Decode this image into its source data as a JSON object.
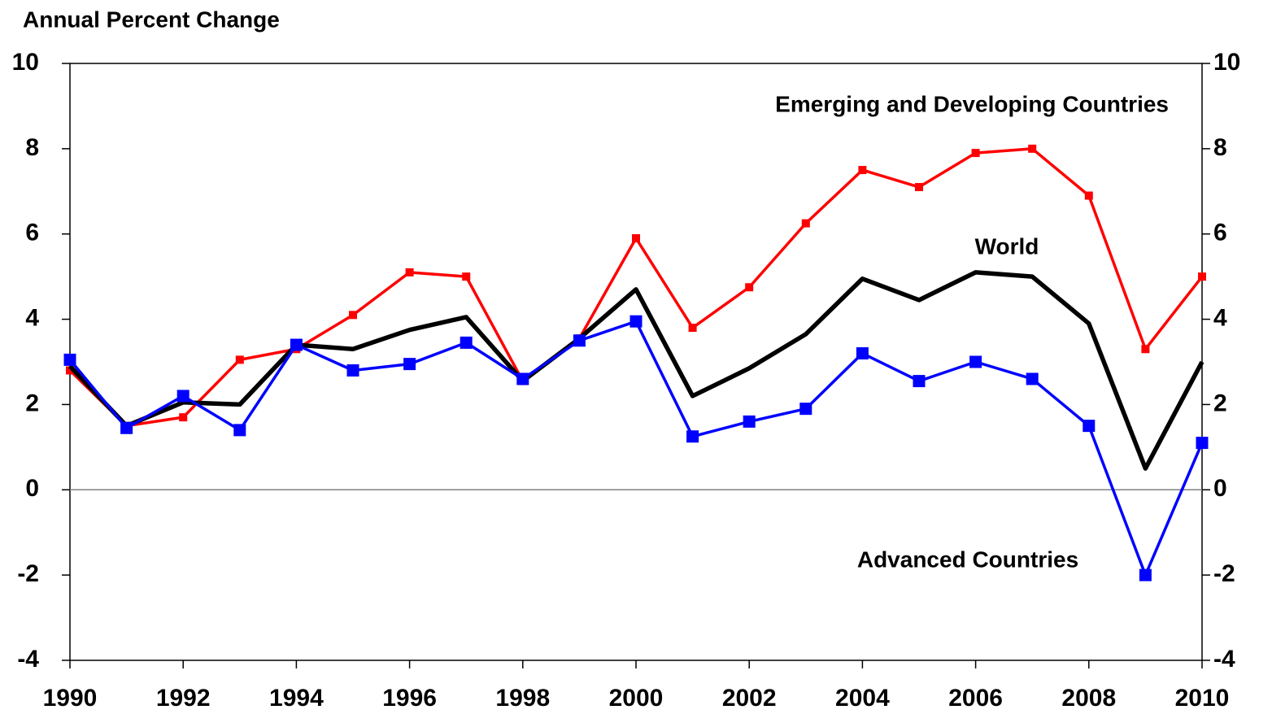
{
  "chart_data": {
    "type": "line",
    "y_label": "Annual Percent Change",
    "x": [
      1990,
      1991,
      1992,
      1993,
      1994,
      1995,
      1996,
      1997,
      1998,
      1999,
      2000,
      2001,
      2002,
      2003,
      2004,
      2005,
      2006,
      2007,
      2008,
      2009,
      2010
    ],
    "xlim": [
      1990,
      2010
    ],
    "xticks": [
      1990,
      1992,
      1994,
      1996,
      1998,
      2000,
      2002,
      2004,
      2006,
      2008,
      2010
    ],
    "ylim": [
      -4,
      10
    ],
    "yticks": [
      -4,
      -2,
      0,
      2,
      4,
      6,
      8,
      10
    ],
    "series": [
      {
        "name": "Emerging and Developing Countries",
        "color": "#ff0000",
        "marker": "square",
        "values": [
          2.8,
          1.5,
          1.7,
          3.05,
          3.3,
          4.1,
          5.1,
          5.0,
          2.55,
          3.55,
          5.9,
          3.8,
          4.75,
          6.25,
          7.5,
          7.1,
          7.9,
          8.0,
          6.9,
          3.3,
          5.0
        ]
      },
      {
        "name": "World",
        "color": "#000000",
        "marker": "none",
        "values": [
          2.9,
          1.5,
          2.05,
          2.0,
          3.4,
          3.3,
          3.75,
          4.05,
          2.55,
          3.55,
          4.7,
          2.2,
          2.85,
          3.65,
          4.95,
          4.45,
          5.1,
          5.0,
          3.9,
          0.5,
          3.0
        ]
      },
      {
        "name": "Advanced Countries",
        "color": "#0000ff",
        "marker": "square",
        "values": [
          3.05,
          1.45,
          2.2,
          1.4,
          3.4,
          2.8,
          2.95,
          3.45,
          2.6,
          3.5,
          3.95,
          1.25,
          1.6,
          1.9,
          3.2,
          2.55,
          3.0,
          2.6,
          1.5,
          -2.0,
          1.1
        ]
      }
    ]
  }
}
